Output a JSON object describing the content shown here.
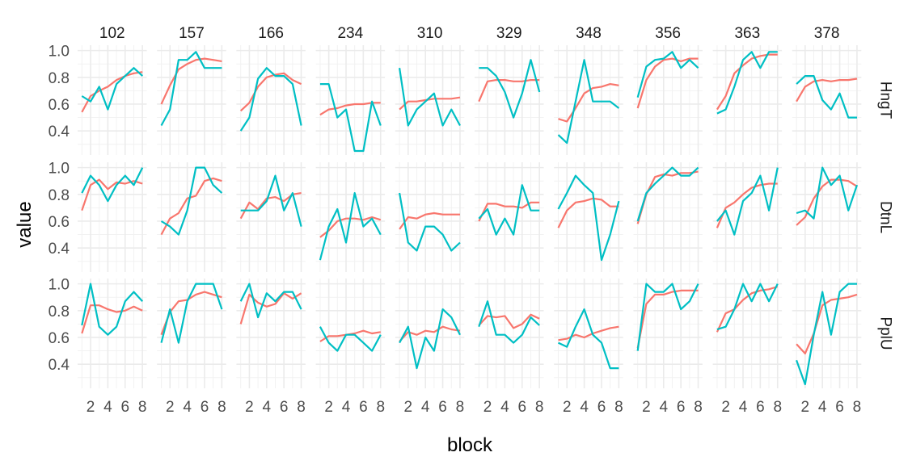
{
  "chart_data": {
    "type": "line",
    "xlabel": "block",
    "ylabel": "value",
    "x": [
      1,
      2,
      3,
      4,
      5,
      6,
      7,
      8
    ],
    "x_ticks": [
      2,
      4,
      6,
      8
    ],
    "x_range": [
      0.5,
      8.5
    ],
    "y_ticks": [
      0.4,
      0.6,
      0.8,
      1.0
    ],
    "y_tick_labels": [
      "0.4",
      "0.6",
      "0.8",
      "1.0"
    ],
    "y_range": [
      0.22,
      1.04
    ],
    "grid": true,
    "legend": "none",
    "facet_cols": [
      "102",
      "157",
      "166",
      "234",
      "310",
      "329",
      "348",
      "356",
      "363",
      "378"
    ],
    "facet_rows": [
      "HngT",
      "DtnL",
      "PplU"
    ],
    "series_colors": [
      "#F8766D",
      "#00BFC4"
    ],
    "panels": [
      {
        "col": "102",
        "row": "HngT",
        "series": [
          [
            0.54,
            0.66,
            0.7,
            0.73,
            0.78,
            0.81,
            0.83,
            0.84
          ],
          [
            0.66,
            0.62,
            0.73,
            0.56,
            0.75,
            0.81,
            0.87,
            0.81
          ]
        ]
      },
      {
        "col": "157",
        "row": "HngT",
        "series": [
          [
            0.6,
            0.74,
            0.86,
            0.9,
            0.93,
            0.94,
            0.93,
            0.92
          ],
          [
            0.44,
            0.56,
            0.93,
            0.93,
            0.99,
            0.87,
            0.87,
            0.87
          ]
        ]
      },
      {
        "col": "166",
        "row": "HngT",
        "series": [
          [
            0.55,
            0.61,
            0.73,
            0.8,
            0.82,
            0.83,
            0.78,
            0.75
          ],
          [
            0.4,
            0.5,
            0.79,
            0.87,
            0.81,
            0.81,
            0.75,
            0.44
          ]
        ]
      },
      {
        "col": "234",
        "row": "HngT",
        "series": [
          [
            0.52,
            0.56,
            0.57,
            0.59,
            0.6,
            0.6,
            0.61,
            0.61
          ],
          [
            0.75,
            0.75,
            0.5,
            0.56,
            0.25,
            0.25,
            0.62,
            0.44
          ]
        ]
      },
      {
        "col": "310",
        "row": "HngT",
        "series": [
          [
            0.56,
            0.62,
            0.62,
            0.63,
            0.64,
            0.64,
            0.64,
            0.65
          ],
          [
            0.87,
            0.44,
            0.56,
            0.62,
            0.68,
            0.44,
            0.56,
            0.44
          ]
        ]
      },
      {
        "col": "329",
        "row": "HngT",
        "series": [
          [
            0.62,
            0.77,
            0.78,
            0.78,
            0.77,
            0.77,
            0.78,
            0.78
          ],
          [
            0.87,
            0.87,
            0.81,
            0.69,
            0.5,
            0.68,
            0.93,
            0.69
          ]
        ]
      },
      {
        "col": "348",
        "row": "HngT",
        "series": [
          [
            0.49,
            0.47,
            0.57,
            0.68,
            0.72,
            0.73,
            0.75,
            0.74
          ],
          [
            0.37,
            0.31,
            0.62,
            0.93,
            0.62,
            0.62,
            0.62,
            0.57
          ]
        ]
      },
      {
        "col": "356",
        "row": "HngT",
        "series": [
          [
            0.57,
            0.78,
            0.88,
            0.93,
            0.94,
            0.92,
            0.94,
            0.94
          ],
          [
            0.65,
            0.88,
            0.93,
            0.94,
            0.99,
            0.87,
            0.93,
            0.87
          ]
        ]
      },
      {
        "col": "363",
        "row": "HngT",
        "series": [
          [
            0.56,
            0.66,
            0.83,
            0.89,
            0.94,
            0.96,
            0.97,
            0.97
          ],
          [
            0.53,
            0.56,
            0.73,
            0.93,
            0.99,
            0.87,
            0.99,
            0.99
          ]
        ]
      },
      {
        "col": "378",
        "row": "HngT",
        "series": [
          [
            0.62,
            0.73,
            0.77,
            0.78,
            0.77,
            0.78,
            0.78,
            0.79
          ],
          [
            0.75,
            0.81,
            0.81,
            0.63,
            0.56,
            0.68,
            0.5,
            0.5
          ]
        ]
      },
      {
        "col": "102",
        "row": "DtnL",
        "series": [
          [
            0.68,
            0.87,
            0.91,
            0.84,
            0.89,
            0.88,
            0.9,
            0.88
          ],
          [
            0.81,
            0.94,
            0.87,
            0.75,
            0.87,
            0.94,
            0.87,
            1.0
          ]
        ]
      },
      {
        "col": "157",
        "row": "DtnL",
        "series": [
          [
            0.5,
            0.62,
            0.66,
            0.77,
            0.79,
            0.9,
            0.92,
            0.9
          ],
          [
            0.6,
            0.56,
            0.5,
            0.68,
            1.0,
            1.0,
            0.87,
            0.81
          ]
        ]
      },
      {
        "col": "166",
        "row": "DtnL",
        "series": [
          [
            0.62,
            0.74,
            0.69,
            0.77,
            0.78,
            0.75,
            0.8,
            0.81
          ],
          [
            0.68,
            0.68,
            0.68,
            0.75,
            0.94,
            0.68,
            0.81,
            0.56
          ]
        ]
      },
      {
        "col": "234",
        "row": "DtnL",
        "series": [
          [
            0.48,
            0.53,
            0.6,
            0.62,
            0.62,
            0.61,
            0.63,
            0.61
          ],
          [
            0.31,
            0.56,
            0.69,
            0.44,
            0.81,
            0.56,
            0.62,
            0.5
          ]
        ]
      },
      {
        "col": "310",
        "row": "DtnL",
        "series": [
          [
            0.54,
            0.63,
            0.62,
            0.65,
            0.66,
            0.65,
            0.65,
            0.65
          ],
          [
            0.81,
            0.44,
            0.38,
            0.56,
            0.56,
            0.5,
            0.38,
            0.44
          ]
        ]
      },
      {
        "col": "329",
        "row": "DtnL",
        "series": [
          [
            0.6,
            0.73,
            0.73,
            0.71,
            0.71,
            0.7,
            0.74,
            0.74
          ],
          [
            0.62,
            0.69,
            0.5,
            0.62,
            0.5,
            0.87,
            0.68,
            0.68
          ]
        ]
      },
      {
        "col": "348",
        "row": "DtnL",
        "series": [
          [
            0.55,
            0.68,
            0.74,
            0.75,
            0.77,
            0.76,
            0.71,
            0.71
          ],
          [
            0.69,
            0.81,
            0.94,
            0.87,
            0.81,
            0.31,
            0.5,
            0.75
          ]
        ]
      },
      {
        "col": "356",
        "row": "DtnL",
        "series": [
          [
            0.58,
            0.8,
            0.93,
            0.95,
            0.94,
            0.96,
            0.96,
            0.97
          ],
          [
            0.6,
            0.81,
            0.88,
            0.94,
            1.0,
            0.94,
            0.94,
            1.0
          ]
        ]
      },
      {
        "col": "363",
        "row": "DtnL",
        "series": [
          [
            0.55,
            0.7,
            0.74,
            0.8,
            0.85,
            0.87,
            0.88,
            0.88
          ],
          [
            0.6,
            0.68,
            0.5,
            0.75,
            0.81,
            0.94,
            0.68,
            1.0
          ]
        ]
      },
      {
        "col": "378",
        "row": "DtnL",
        "series": [
          [
            0.57,
            0.63,
            0.77,
            0.86,
            0.91,
            0.91,
            0.9,
            0.86
          ],
          [
            0.66,
            0.68,
            0.62,
            1.0,
            0.87,
            0.94,
            0.68,
            0.87
          ]
        ]
      },
      {
        "col": "102",
        "row": "PplU",
        "series": [
          [
            0.63,
            0.84,
            0.84,
            0.81,
            0.79,
            0.8,
            0.83,
            0.8
          ],
          [
            0.69,
            1.0,
            0.68,
            0.62,
            0.68,
            0.87,
            0.94,
            0.87
          ]
        ]
      },
      {
        "col": "157",
        "row": "PplU",
        "series": [
          [
            0.62,
            0.79,
            0.87,
            0.88,
            0.92,
            0.94,
            0.92,
            0.9
          ],
          [
            0.56,
            0.81,
            0.56,
            0.87,
            1.0,
            1.0,
            1.0,
            0.81
          ]
        ]
      },
      {
        "col": "166",
        "row": "PplU",
        "series": [
          [
            0.7,
            0.92,
            0.86,
            0.83,
            0.85,
            0.93,
            0.89,
            0.93
          ],
          [
            0.87,
            1.0,
            0.75,
            0.93,
            0.87,
            0.94,
            0.94,
            0.81
          ]
        ]
      },
      {
        "col": "234",
        "row": "PplU",
        "series": [
          [
            0.57,
            0.61,
            0.61,
            0.62,
            0.63,
            0.65,
            0.63,
            0.64
          ],
          [
            0.68,
            0.56,
            0.5,
            0.62,
            0.62,
            0.56,
            0.5,
            0.62
          ]
        ]
      },
      {
        "col": "310",
        "row": "PplU",
        "series": [
          [
            0.57,
            0.64,
            0.62,
            0.65,
            0.64,
            0.68,
            0.66,
            0.65
          ],
          [
            0.56,
            0.68,
            0.37,
            0.6,
            0.5,
            0.81,
            0.75,
            0.62
          ]
        ]
      },
      {
        "col": "329",
        "row": "PplU",
        "series": [
          [
            0.69,
            0.76,
            0.75,
            0.76,
            0.67,
            0.7,
            0.77,
            0.74
          ],
          [
            0.68,
            0.87,
            0.62,
            0.62,
            0.56,
            0.62,
            0.75,
            0.69
          ]
        ]
      },
      {
        "col": "348",
        "row": "PplU",
        "series": [
          [
            0.58,
            0.59,
            0.62,
            0.6,
            0.63,
            0.65,
            0.67,
            0.68
          ],
          [
            0.56,
            0.53,
            0.68,
            0.81,
            0.62,
            0.56,
            0.37,
            0.37
          ]
        ]
      },
      {
        "col": "356",
        "row": "PplU",
        "series": [
          [
            0.52,
            0.85,
            0.92,
            0.92,
            0.94,
            0.95,
            0.95,
            0.95
          ],
          [
            0.5,
            1.0,
            0.94,
            0.94,
            1.0,
            0.81,
            0.87,
            1.0
          ]
        ]
      },
      {
        "col": "363",
        "row": "PplU",
        "series": [
          [
            0.64,
            0.78,
            0.81,
            0.88,
            0.93,
            0.95,
            0.96,
            0.98
          ],
          [
            0.66,
            0.68,
            0.81,
            1.0,
            0.87,
            1.0,
            0.87,
            1.0
          ]
        ]
      },
      {
        "col": "378",
        "row": "PplU",
        "series": [
          [
            0.55,
            0.48,
            0.63,
            0.84,
            0.88,
            0.89,
            0.9,
            0.92
          ],
          [
            0.43,
            0.25,
            0.62,
            0.94,
            0.62,
            0.94,
            1.0,
            1.0
          ]
        ]
      }
    ]
  }
}
